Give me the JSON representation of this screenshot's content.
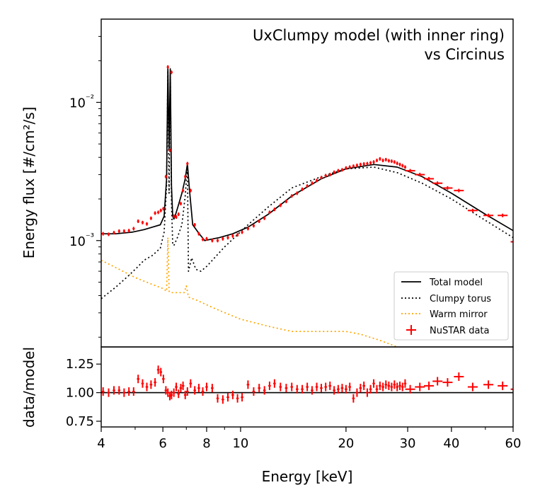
{
  "chart_data": [
    {
      "type": "line",
      "title": "UxClumpy model (with inner ring)",
      "subtitle": "vs Circinus",
      "xlabel": "",
      "ylabel": "Energy flux [#/cm²/s]",
      "xscale": "log",
      "yscale": "log",
      "xlim": [
        4,
        60
      ],
      "ylim": [
        0.00017,
        0.04
      ],
      "y_ticks": [
        {
          "value": 0.001,
          "label": "10⁻³"
        },
        {
          "value": 0.01,
          "label": "10⁻²"
        }
      ],
      "legend_position": "lower-right",
      "legend": [
        {
          "name": "Total model",
          "style": "solid",
          "color": "#000000"
        },
        {
          "name": "Clumpy torus",
          "style": "dotted",
          "color": "#000000"
        },
        {
          "name": "Warm mirror",
          "style": "dotted",
          "color": "#ffa500"
        },
        {
          "name": "NuSTAR data",
          "style": "marker",
          "color": "#ff0000"
        }
      ],
      "series": [
        {
          "name": "Total model",
          "x": [
            4.0,
            4.4,
            4.9,
            5.3,
            5.6,
            5.9,
            6.05,
            6.15,
            6.2,
            6.25,
            6.3,
            6.35,
            6.4,
            6.45,
            6.5,
            6.6,
            6.8,
            6.95,
            7.05,
            7.15,
            7.3,
            7.6,
            7.9,
            8.2,
            8.7,
            9.5,
            10.5,
            12,
            14,
            17,
            20,
            24,
            28,
            33,
            40,
            50,
            60
          ],
          "y": [
            0.00112,
            0.00112,
            0.00115,
            0.0012,
            0.00125,
            0.0013,
            0.0015,
            0.0028,
            0.018,
            0.0045,
            0.0175,
            0.0025,
            0.0015,
            0.00143,
            0.0015,
            0.0017,
            0.0022,
            0.0028,
            0.0036,
            0.0023,
            0.0013,
            0.00113,
            0.001,
            0.00102,
            0.00105,
            0.00112,
            0.00125,
            0.00155,
            0.0021,
            0.0028,
            0.0033,
            0.00355,
            0.0034,
            0.0029,
            0.0022,
            0.00155,
            0.00118
          ]
        },
        {
          "name": "Clumpy torus",
          "x": [
            4.0,
            4.4,
            4.8,
            5.1,
            5.3,
            5.6,
            5.9,
            6.05,
            6.15,
            6.2,
            6.25,
            6.3,
            6.35,
            6.4,
            6.45,
            6.6,
            6.8,
            6.95,
            7.05,
            7.1,
            7.25,
            7.45,
            7.7,
            8.0,
            9.0,
            10.5,
            12,
            14,
            17,
            20,
            24,
            28,
            33,
            40,
            50,
            60
          ],
          "y": [
            0.00038,
            0.00046,
            0.00056,
            0.00065,
            0.00072,
            0.00078,
            0.00088,
            0.00115,
            0.0025,
            0.017,
            0.0022,
            0.0165,
            0.0019,
            0.00095,
            0.00092,
            0.00105,
            0.0013,
            0.0021,
            0.0035,
            0.0006,
            0.00075,
            0.00062,
            0.0006,
            0.00065,
            0.0009,
            0.0013,
            0.00175,
            0.0024,
            0.0029,
            0.0033,
            0.0034,
            0.0031,
            0.0026,
            0.002,
            0.0014,
            0.00105
          ]
        },
        {
          "name": "Warm mirror",
          "x": [
            4.0,
            4.5,
            5.0,
            5.5,
            6.0,
            6.15,
            6.2,
            6.25,
            6.3,
            6.4,
            6.6,
            6.9,
            7.0,
            7.1,
            7.5,
            8.5,
            10,
            12,
            14,
            16,
            18,
            20,
            22,
            25,
            28
          ],
          "y": [
            0.00072,
            0.00062,
            0.00054,
            0.00049,
            0.00045,
            0.00043,
            0.00105,
            0.00043,
            0.00042,
            0.00042,
            0.00042,
            0.00042,
            0.00047,
            0.00039,
            0.00037,
            0.00032,
            0.00027,
            0.00024,
            0.00022,
            0.00022,
            0.00022,
            0.00022,
            0.00021,
            0.00019,
            0.00017
          ]
        },
        {
          "name": "NuSTAR data",
          "x": [
            4.05,
            4.2,
            4.35,
            4.5,
            4.65,
            4.8,
            4.95,
            5.1,
            5.25,
            5.4,
            5.55,
            5.7,
            5.82,
            5.92,
            6.02,
            6.12,
            6.2,
            6.28,
            6.35,
            6.45,
            6.55,
            6.65,
            6.75,
            6.85,
            6.95,
            7.05,
            7.2,
            7.4,
            7.6,
            7.8,
            8.0,
            8.3,
            8.6,
            8.9,
            9.2,
            9.5,
            9.8,
            10.1,
            10.5,
            10.9,
            11.3,
            11.7,
            12.1,
            12.5,
            13.0,
            13.5,
            14.0,
            14.5,
            15.0,
            15.5,
            16.0,
            16.5,
            17.0,
            17.5,
            18.0,
            18.5,
            19.0,
            19.5,
            20.0,
            20.5,
            21.0,
            21.5,
            22.0,
            22.5,
            23.0,
            23.5,
            24.0,
            24.5,
            25.0,
            25.5,
            26.0,
            26.5,
            27.0,
            27.5,
            28.0,
            28.5,
            29.0,
            29.5,
            30.5,
            32.5,
            34.5,
            36.5,
            39.0,
            42.0,
            46.0,
            51.0,
            56.0,
            61.0
          ],
          "y": [
            0.00112,
            0.00111,
            0.00114,
            0.00117,
            0.00117,
            0.00118,
            0.00122,
            0.00138,
            0.00135,
            0.00132,
            0.00145,
            0.00158,
            0.0016,
            0.00165,
            0.0017,
            0.0029,
            0.018,
            0.0045,
            0.0165,
            0.0015,
            0.00148,
            0.00155,
            0.00185,
            0.0023,
            0.0029,
            0.0036,
            0.0023,
            0.0013,
            0.00112,
            0.00102,
            0.00103,
            0.001,
            0.001,
            0.00103,
            0.00105,
            0.00108,
            0.0011,
            0.00115,
            0.00122,
            0.00128,
            0.00138,
            0.00145,
            0.0016,
            0.00168,
            0.0018,
            0.00192,
            0.0021,
            0.0022,
            0.00235,
            0.00248,
            0.0026,
            0.00272,
            0.00285,
            0.00295,
            0.003,
            0.00312,
            0.0032,
            0.00325,
            0.00335,
            0.0034,
            0.00345,
            0.0035,
            0.00355,
            0.00358,
            0.0036,
            0.00365,
            0.0037,
            0.0038,
            0.0039,
            0.0038,
            0.00385,
            0.00378,
            0.00375,
            0.0037,
            0.00362,
            0.00355,
            0.00348,
            0.0034,
            0.0032,
            0.003,
            0.0028,
            0.0026,
            0.0024,
            0.0023,
            0.00165,
            0.00152,
            0.00152,
            0.00098
          ]
        }
      ]
    },
    {
      "type": "scatter",
      "xlabel": "Energy [keV]",
      "ylabel": "data/model",
      "xscale": "log",
      "xlim": [
        4,
        60
      ],
      "ylim": [
        0.7,
        1.4
      ],
      "y_ticks": [
        {
          "value": 0.75,
          "label": "0.75"
        },
        {
          "value": 1.0,
          "label": "1.00"
        },
        {
          "value": 1.25,
          "label": "1.25"
        }
      ],
      "x_ticks": [
        {
          "value": 4,
          "label": "4"
        },
        {
          "value": 6,
          "label": "6"
        },
        {
          "value": 8,
          "label": "8"
        },
        {
          "value": 10,
          "label": "10"
        },
        {
          "value": 20,
          "label": "20"
        },
        {
          "value": 30,
          "label": "30"
        },
        {
          "value": 40,
          "label": "40"
        },
        {
          "value": 60,
          "label": "60"
        }
      ],
      "reference_line": 1.0,
      "series": [
        {
          "name": "NuSTAR data",
          "x": [
            4.05,
            4.2,
            4.35,
            4.5,
            4.65,
            4.8,
            4.95,
            5.1,
            5.25,
            5.4,
            5.55,
            5.7,
            5.82,
            5.92,
            6.02,
            6.12,
            6.2,
            6.28,
            6.35,
            6.45,
            6.55,
            6.65,
            6.75,
            6.85,
            6.95,
            7.05,
            7.2,
            7.4,
            7.6,
            7.8,
            8.0,
            8.3,
            8.6,
            8.9,
            9.2,
            9.5,
            9.8,
            10.1,
            10.5,
            10.9,
            11.3,
            11.7,
            12.1,
            12.5,
            13.0,
            13.5,
            14.0,
            14.5,
            15.0,
            15.5,
            16.0,
            16.5,
            17.0,
            17.5,
            18.0,
            18.5,
            19.0,
            19.5,
            20.0,
            20.5,
            21.0,
            21.5,
            22.0,
            22.5,
            23.0,
            23.5,
            24.0,
            24.5,
            25.0,
            25.5,
            26.0,
            26.5,
            27.0,
            27.5,
            28.0,
            28.5,
            29.0,
            29.5,
            30.5,
            32.5,
            34.5,
            36.5,
            39.0,
            42.0,
            46.0,
            51.0,
            56.0,
            61.0
          ],
          "y": [
            1.01,
            1.0,
            1.02,
            1.02,
            1.0,
            1.01,
            1.01,
            1.12,
            1.08,
            1.05,
            1.07,
            1.09,
            1.2,
            1.18,
            1.12,
            1.02,
            1.0,
            0.97,
            0.98,
            1.0,
            1.05,
            0.99,
            1.04,
            1.06,
            0.98,
            1.01,
            1.08,
            1.02,
            1.04,
            1.01,
            1.05,
            1.04,
            0.95,
            0.94,
            0.96,
            0.98,
            0.95,
            0.96,
            1.07,
            1.01,
            1.04,
            1.02,
            1.06,
            1.08,
            1.05,
            1.04,
            1.05,
            1.03,
            1.03,
            1.05,
            1.02,
            1.05,
            1.04,
            1.05,
            1.06,
            1.02,
            1.03,
            1.04,
            1.03,
            1.05,
            0.95,
            1.0,
            1.04,
            1.06,
            1.0,
            1.03,
            1.08,
            1.03,
            1.06,
            1.05,
            1.07,
            1.06,
            1.05,
            1.07,
            1.05,
            1.06,
            1.05,
            1.08,
            1.03,
            1.05,
            1.06,
            1.1,
            1.09,
            1.14,
            1.05,
            1.07,
            1.06,
            1.03
          ]
        }
      ]
    }
  ]
}
